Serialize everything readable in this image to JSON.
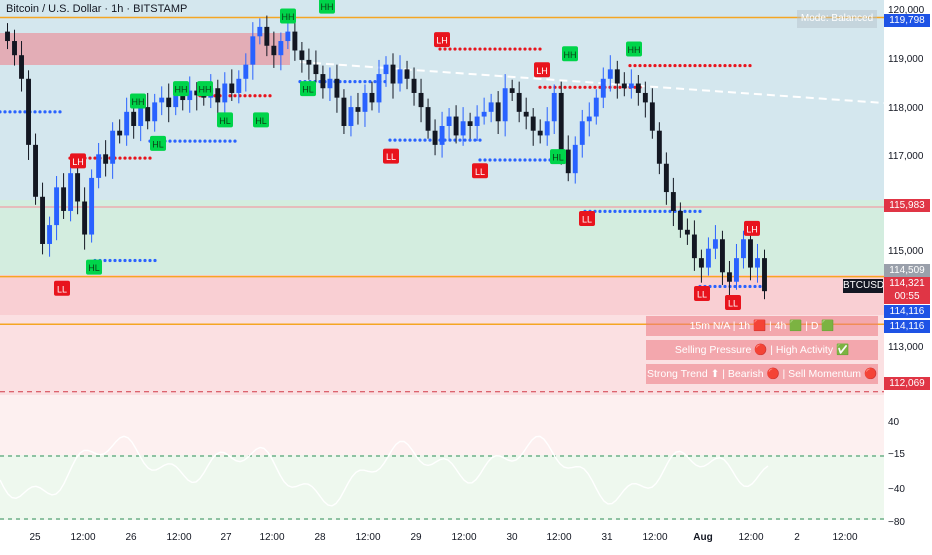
{
  "header": {
    "title": "Bitcoin / U.S. Dollar · 1h · BITSTAMP",
    "mode_label": "Mode: Balanced"
  },
  "panels": {
    "timeframes": "15m N/A | 1h 🟥 | 4h 🟩 | D 🟩",
    "pressure": "Selling Pressure 🔴 | High Activity ✅",
    "trend": "Strong Trend ⬆ | Bearish 🔴 | Sell Momentum 🔴"
  },
  "price_axis": {
    "labels": [
      "120,000",
      "119,000",
      "118,000",
      "117,000",
      "115,000",
      "113,000"
    ],
    "osc_labels": [
      "40",
      "−15",
      "−40",
      "−80"
    ]
  },
  "price_tags": {
    "t1": "119,798",
    "t2": "115,983",
    "t3": "114,509",
    "t4": "114,116",
    "t5": "114,116",
    "t6": "112,069"
  },
  "current": {
    "symbol": "BTCUSD",
    "price": "114,321",
    "countdown": "00:55"
  },
  "colors": {
    "up": "#2962ff",
    "down": "#131722",
    "resistance": "#f0a0a8",
    "support_zone": "#d9f0e3",
    "bear_zone": "#fbdde0",
    "hh_label": "#00d44a",
    "ll_label": "#e8141d",
    "orange_line": "#f5a623"
  },
  "chart_data": {
    "type": "candlestick",
    "x_ticks": [
      "25",
      "12:00",
      "26",
      "12:00",
      "27",
      "12:00",
      "28",
      "12:00",
      "29",
      "12:00",
      "30",
      "12:00",
      "31",
      "12:00",
      "Aug",
      "12:00",
      "2",
      "12:00"
    ],
    "ylim": [
      112000,
      120200
    ],
    "structure_labels": [
      {
        "text": "LH",
        "price": 116950
      },
      {
        "text": "LL",
        "price": 114250
      },
      {
        "text": "HL",
        "price": 114700
      },
      {
        "text": "HH",
        "price": 118220
      },
      {
        "text": "HH",
        "price": 118480
      },
      {
        "text": "HH",
        "price": 118480
      },
      {
        "text": "HL",
        "price": 117320
      },
      {
        "text": "HL",
        "price": 117820
      },
      {
        "text": "HL",
        "price": 117820
      },
      {
        "text": "HH",
        "price": 120020
      },
      {
        "text": "HH",
        "price": 120230
      },
      {
        "text": "HL",
        "price": 118480
      },
      {
        "text": "LH",
        "price": 119520
      },
      {
        "text": "LL",
        "price": 117050
      },
      {
        "text": "LL",
        "price": 116740
      },
      {
        "text": "HH",
        "price": 119220
      },
      {
        "text": "LH",
        "price": 118880
      },
      {
        "text": "HL",
        "price": 117040
      },
      {
        "text": "LL",
        "price": 115730
      },
      {
        "text": "HH",
        "price": 119320
      },
      {
        "text": "LH",
        "price": 115520
      },
      {
        "text": "LL",
        "price": 114140
      },
      {
        "text": "LL",
        "price": 113950
      }
    ],
    "levels": [
      {
        "price": 120000,
        "kind": "orange"
      },
      {
        "price": 114509,
        "kind": "orange"
      },
      {
        "price": 113500,
        "kind": "orange"
      },
      {
        "price": 115983,
        "kind": "resistance"
      },
      {
        "price": 112069,
        "kind": "dashed-red"
      }
    ],
    "candles_close": [
      119500,
      119200,
      118700,
      117300,
      116200,
      115200,
      115600,
      116400,
      115900,
      116700,
      116100,
      115400,
      116600,
      117100,
      116900,
      117600,
      117500,
      118000,
      117700,
      118100,
      117800,
      118200,
      118300,
      118100,
      118400,
      118250,
      118450,
      118350,
      118300,
      118500,
      118200,
      118600,
      118400,
      118700,
      119000,
      119600,
      119800,
      119400,
      119200,
      119500,
      119700,
      119300,
      119100,
      119000,
      118800,
      118500,
      118700,
      118300,
      117700,
      118100,
      118000,
      118400,
      118200,
      118800,
      119000,
      118600,
      118900,
      118700,
      118400,
      118100,
      117600,
      117300,
      117700,
      117900,
      117500,
      117800,
      117700,
      117900,
      118000,
      118200,
      117800,
      118500,
      118400,
      118000,
      117900,
      117600,
      117500,
      117800,
      118400,
      117200,
      116700,
      117300,
      117800,
      117900,
      118300,
      118700,
      118900,
      118600,
      118500,
      118600,
      118400,
      118200,
      117600,
      116900,
      116300,
      115900,
      115500,
      115400,
      114900,
      114700,
      115100,
      115300,
      114600,
      114400,
      114900,
      115300,
      114700,
      114900,
      114200
    ],
    "oscillator": {
      "ylim": [
        -80,
        60
      ],
      "levels": [
        -15,
        -80
      ]
    }
  }
}
